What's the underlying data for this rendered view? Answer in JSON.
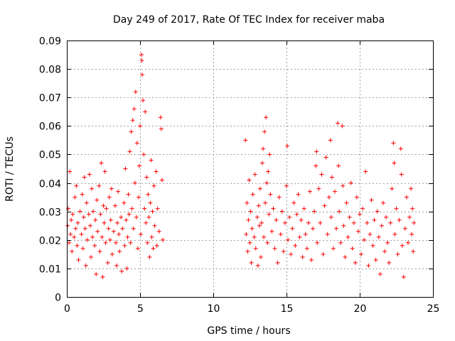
{
  "chart_data": {
    "type": "scatter",
    "title": "Day 249 of 2017, Rate Of TEC Index for receiver maba",
    "xlabel": "GPS time / hours",
    "ylabel": "ROTI / TECUs",
    "xlim": [
      0,
      25
    ],
    "ylim": [
      0,
      0.09
    ],
    "x_ticks": [
      0,
      5,
      10,
      15,
      20,
      25
    ],
    "x_tick_labels": [
      "0",
      "5",
      "10",
      "15",
      "20",
      "25"
    ],
    "y_ticks": [
      0,
      0.01,
      0.02,
      0.03,
      0.04,
      0.05,
      0.06,
      0.07,
      0.08,
      0.09
    ],
    "y_tick_labels": [
      "0",
      "0.01",
      "0.02",
      "0.03",
      "0.04",
      "0.05",
      "0.06",
      "0.07",
      "0.08",
      "0.09"
    ],
    "grid": true,
    "marker": "+",
    "color": "#ff0000",
    "series": [
      {
        "name": "ROTI",
        "points": [
          [
            0.05,
            0.025
          ],
          [
            0.1,
            0.031
          ],
          [
            0.15,
            0.019
          ],
          [
            0.2,
            0.044
          ],
          [
            0.25,
            0.022
          ],
          [
            0.3,
            0.027
          ],
          [
            0.35,
            0.016
          ],
          [
            0.4,
            0.029
          ],
          [
            0.5,
            0.021
          ],
          [
            0.55,
            0.035
          ],
          [
            0.6,
            0.024
          ],
          [
            0.65,
            0.039
          ],
          [
            0.7,
            0.018
          ],
          [
            0.75,
            0.026
          ],
          [
            0.8,
            0.013
          ],
          [
            0.9,
            0.03
          ],
          [
            1.0,
            0.022
          ],
          [
            1.05,
            0.036
          ],
          [
            1.1,
            0.017
          ],
          [
            1.15,
            0.028
          ],
          [
            1.2,
            0.042
          ],
          [
            1.25,
            0.024
          ],
          [
            1.3,
            0.011
          ],
          [
            1.35,
            0.033
          ],
          [
            1.4,
            0.02
          ],
          [
            1.5,
            0.029
          ],
          [
            1.55,
            0.043
          ],
          [
            1.6,
            0.025
          ],
          [
            1.65,
            0.014
          ],
          [
            1.7,
            0.038
          ],
          [
            1.75,
            0.021
          ],
          [
            1.8,
            0.03
          ],
          [
            1.9,
            0.018
          ],
          [
            1.95,
            0.027
          ],
          [
            2.0,
            0.008
          ],
          [
            2.05,
            0.034
          ],
          [
            2.1,
            0.023
          ],
          [
            2.2,
            0.039
          ],
          [
            2.25,
            0.016
          ],
          [
            2.3,
            0.029
          ],
          [
            2.35,
            0.047
          ],
          [
            2.4,
            0.021
          ],
          [
            2.45,
            0.007
          ],
          [
            2.5,
            0.032
          ],
          [
            2.55,
            0.026
          ],
          [
            2.6,
            0.044
          ],
          [
            2.65,
            0.019
          ],
          [
            2.7,
            0.031
          ],
          [
            2.8,
            0.012
          ],
          [
            2.85,
            0.024
          ],
          [
            2.9,
            0.035
          ],
          [
            2.95,
            0.02
          ],
          [
            3.0,
            0.027
          ],
          [
            3.05,
            0.038
          ],
          [
            3.1,
            0.015
          ],
          [
            3.2,
            0.023
          ],
          [
            3.3,
            0.032
          ],
          [
            3.35,
            0.019
          ],
          [
            3.4,
            0.011
          ],
          [
            3.45,
            0.026
          ],
          [
            3.5,
            0.037
          ],
          [
            3.55,
            0.022
          ],
          [
            3.6,
            0.016
          ],
          [
            3.7,
            0.028
          ],
          [
            3.75,
            0.009
          ],
          [
            3.8,
            0.024
          ],
          [
            3.9,
            0.033
          ],
          [
            3.95,
            0.018
          ],
          [
            4.0,
            0.045
          ],
          [
            4.05,
            0.027
          ],
          [
            4.1,
            0.01
          ],
          [
            4.15,
            0.021
          ],
          [
            4.2,
            0.036
          ],
          [
            4.25,
            0.029
          ],
          [
            4.3,
            0.051
          ],
          [
            4.35,
            0.019
          ],
          [
            4.4,
            0.058
          ],
          [
            4.45,
            0.031
          ],
          [
            4.5,
            0.062
          ],
          [
            4.55,
            0.024
          ],
          [
            4.6,
            0.066
          ],
          [
            4.65,
            0.04
          ],
          [
            4.7,
            0.072
          ],
          [
            4.75,
            0.028
          ],
          [
            4.8,
            0.054
          ],
          [
            4.85,
            0.017
          ],
          [
            4.9,
            0.035
          ],
          [
            4.95,
            0.046
          ],
          [
            5.0,
            0.06
          ],
          [
            5.05,
            0.022
          ],
          [
            5.1,
            0.085
          ],
          [
            5.12,
            0.083
          ],
          [
            5.15,
            0.078
          ],
          [
            5.2,
            0.069
          ],
          [
            5.25,
            0.05
          ],
          [
            5.3,
            0.031
          ],
          [
            5.35,
            0.065
          ],
          [
            5.4,
            0.026
          ],
          [
            5.45,
            0.042
          ],
          [
            5.5,
            0.019
          ],
          [
            5.55,
            0.036
          ],
          [
            5.6,
            0.028
          ],
          [
            5.65,
            0.014
          ],
          [
            5.7,
            0.033
          ],
          [
            5.75,
            0.048
          ],
          [
            5.8,
            0.021
          ],
          [
            5.85,
            0.03
          ],
          [
            5.9,
            0.017
          ],
          [
            5.95,
            0.039
          ],
          [
            6.0,
            0.025
          ],
          [
            6.1,
            0.044
          ],
          [
            6.15,
            0.018
          ],
          [
            6.2,
            0.031
          ],
          [
            6.3,
            0.023
          ],
          [
            6.4,
            0.063
          ],
          [
            6.45,
            0.059
          ],
          [
            6.5,
            0.041
          ],
          [
            6.55,
            0.02
          ],
          [
            12.2,
            0.055
          ],
          [
            12.25,
            0.022
          ],
          [
            12.3,
            0.033
          ],
          [
            12.35,
            0.016
          ],
          [
            12.4,
            0.027
          ],
          [
            12.45,
            0.041
          ],
          [
            12.5,
            0.019
          ],
          [
            12.55,
            0.03
          ],
          [
            12.6,
            0.012
          ],
          [
            12.65,
            0.024
          ],
          [
            12.7,
            0.036
          ],
          [
            12.8,
            0.021
          ],
          [
            12.85,
            0.043
          ],
          [
            12.9,
            0.017
          ],
          [
            13.0,
            0.028
          ],
          [
            13.05,
            0.011
          ],
          [
            13.1,
            0.032
          ],
          [
            13.15,
            0.025
          ],
          [
            13.2,
            0.038
          ],
          [
            13.25,
            0.014
          ],
          [
            13.3,
            0.026
          ],
          [
            13.35,
            0.047
          ],
          [
            13.4,
            0.052
          ],
          [
            13.45,
            0.021
          ],
          [
            13.5,
            0.058
          ],
          [
            13.55,
            0.033
          ],
          [
            13.6,
            0.063
          ],
          [
            13.65,
            0.04
          ],
          [
            13.7,
            0.019
          ],
          [
            13.75,
            0.044
          ],
          [
            13.8,
            0.029
          ],
          [
            13.85,
            0.05
          ],
          [
            13.9,
            0.036
          ],
          [
            14.0,
            0.023
          ],
          [
            14.1,
            0.031
          ],
          [
            14.2,
            0.017
          ],
          [
            14.3,
            0.027
          ],
          [
            14.4,
            0.012
          ],
          [
            14.5,
            0.035
          ],
          [
            14.6,
            0.022
          ],
          [
            14.7,
            0.03
          ],
          [
            14.8,
            0.016
          ],
          [
            14.9,
            0.026
          ],
          [
            15.0,
            0.039
          ],
          [
            15.05,
            0.053
          ],
          [
            15.1,
            0.02
          ],
          [
            15.2,
            0.028
          ],
          [
            15.3,
            0.015
          ],
          [
            15.4,
            0.024
          ],
          [
            15.5,
            0.033
          ],
          [
            15.6,
            0.018
          ],
          [
            15.7,
            0.029
          ],
          [
            15.8,
            0.036
          ],
          [
            15.9,
            0.021
          ],
          [
            16.0,
            0.027
          ],
          [
            16.1,
            0.014
          ],
          [
            16.2,
            0.031
          ],
          [
            16.3,
            0.022
          ],
          [
            16.4,
            0.017
          ],
          [
            16.5,
            0.026
          ],
          [
            16.6,
            0.037
          ],
          [
            16.7,
            0.013
          ],
          [
            16.8,
            0.024
          ],
          [
            16.9,
            0.03
          ],
          [
            17.0,
            0.046
          ],
          [
            17.05,
            0.051
          ],
          [
            17.1,
            0.019
          ],
          [
            17.2,
            0.038
          ],
          [
            17.3,
            0.026
          ],
          [
            17.4,
            0.043
          ],
          [
            17.5,
            0.015
          ],
          [
            17.6,
            0.032
          ],
          [
            17.7,
            0.049
          ],
          [
            17.8,
            0.022
          ],
          [
            17.9,
            0.035
          ],
          [
            18.0,
            0.055
          ],
          [
            18.05,
            0.028
          ],
          [
            18.1,
            0.042
          ],
          [
            18.2,
            0.017
          ],
          [
            18.3,
            0.037
          ],
          [
            18.4,
            0.024
          ],
          [
            18.5,
            0.061
          ],
          [
            18.55,
            0.046
          ],
          [
            18.6,
            0.03
          ],
          [
            18.7,
            0.019
          ],
          [
            18.8,
            0.06
          ],
          [
            18.85,
            0.039
          ],
          [
            18.9,
            0.025
          ],
          [
            19.0,
            0.014
          ],
          [
            19.1,
            0.033
          ],
          [
            19.2,
            0.021
          ],
          [
            19.3,
            0.028
          ],
          [
            19.4,
            0.04
          ],
          [
            19.5,
            0.017
          ],
          [
            19.6,
            0.026
          ],
          [
            19.7,
            0.012
          ],
          [
            19.8,
            0.035
          ],
          [
            19.9,
            0.023
          ],
          [
            20.0,
            0.029
          ],
          [
            20.1,
            0.015
          ],
          [
            20.2,
            0.031
          ],
          [
            20.3,
            0.02
          ],
          [
            20.4,
            0.044
          ],
          [
            20.5,
            0.026
          ],
          [
            20.6,
            0.011
          ],
          [
            20.7,
            0.022
          ],
          [
            20.8,
            0.034
          ],
          [
            20.9,
            0.018
          ],
          [
            21.0,
            0.027
          ],
          [
            21.1,
            0.013
          ],
          [
            21.2,
            0.03
          ],
          [
            21.3,
            0.021
          ],
          [
            21.4,
            0.008
          ],
          [
            21.5,
            0.025
          ],
          [
            21.6,
            0.033
          ],
          [
            21.7,
            0.016
          ],
          [
            21.8,
            0.028
          ],
          [
            21.9,
            0.019
          ],
          [
            22.0,
            0.012
          ],
          [
            22.1,
            0.026
          ],
          [
            22.2,
            0.038
          ],
          [
            22.3,
            0.054
          ],
          [
            22.35,
            0.047
          ],
          [
            22.4,
            0.022
          ],
          [
            22.5,
            0.031
          ],
          [
            22.6,
            0.015
          ],
          [
            22.7,
            0.027
          ],
          [
            22.8,
            0.052
          ],
          [
            22.85,
            0.043
          ],
          [
            22.9,
            0.018
          ],
          [
            23.0,
            0.007
          ],
          [
            23.1,
            0.024
          ],
          [
            23.2,
            0.035
          ],
          [
            23.3,
            0.019
          ],
          [
            23.4,
            0.028
          ],
          [
            23.5,
            0.038
          ],
          [
            23.55,
            0.022
          ],
          [
            23.6,
            0.031
          ],
          [
            23.65,
            0.016
          ],
          [
            23.7,
            0.026
          ]
        ]
      }
    ]
  }
}
